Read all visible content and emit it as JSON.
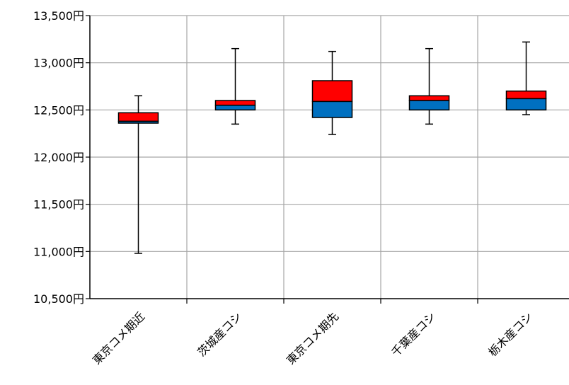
{
  "chart_data": {
    "type": "box",
    "title": "",
    "xlabel": "",
    "ylabel": "",
    "ylim": [
      10500,
      13500
    ],
    "yticks": [
      10500,
      11000,
      11500,
      12000,
      12500,
      13000,
      13500
    ],
    "ytick_labels": [
      "10,500円",
      "11,000円",
      "11,500円",
      "12,000円",
      "12,500円",
      "13,000円",
      "13,500円"
    ],
    "grid": true,
    "categories": [
      "東京コメ期近",
      "茨城産コシ",
      "東京コメ期先",
      "千葉産コシ",
      "栃木産コシ"
    ],
    "boxes": [
      {
        "min": 10980,
        "q1": 12360,
        "median": 12380,
        "q3": 12470,
        "max": 12650
      },
      {
        "min": 12350,
        "q1": 12500,
        "median": 12550,
        "q3": 12600,
        "max": 13150
      },
      {
        "min": 12240,
        "q1": 12420,
        "median": 12590,
        "q3": 12810,
        "max": 13120
      },
      {
        "min": 12350,
        "q1": 12500,
        "median": 12600,
        "q3": 12650,
        "max": 13150
      },
      {
        "min": 12450,
        "q1": 12500,
        "median": 12620,
        "q3": 12700,
        "max": 13220
      }
    ],
    "colors": {
      "lower_box": "#0070C0",
      "upper_box": "#FF0000",
      "grid": "#A6A6A6",
      "axis": "#000000"
    }
  }
}
